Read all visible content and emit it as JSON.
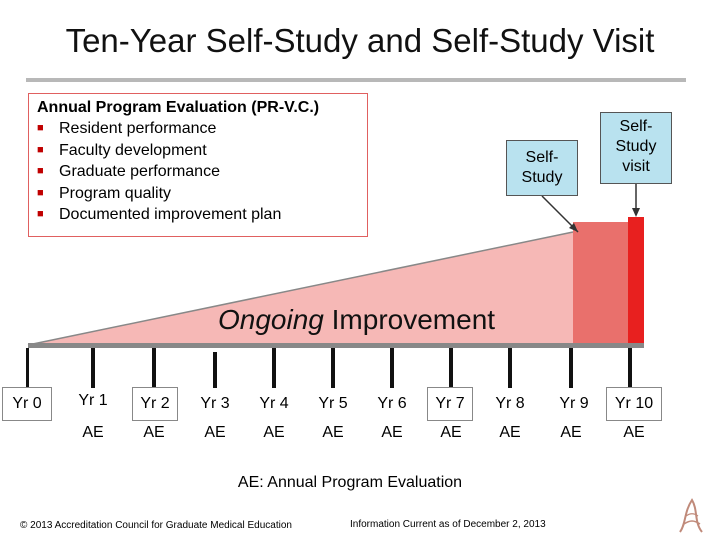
{
  "title": "Ten-Year Self-Study and Self-Study Visit",
  "annual_box": {
    "heading": "Annual Program Evaluation (PR-V.C.)",
    "items": [
      "Resident performance",
      "Faculty development",
      "Graduate performance",
      "Program quality",
      "Documented improvement plan"
    ]
  },
  "self_study": {
    "line1": "Self-",
    "line2": "Study"
  },
  "self_study_visit": {
    "line1": "Self-",
    "line2": "Study",
    "line3": "visit"
  },
  "ongoing": {
    "italic": "Ongoing",
    "rest": " Improvement"
  },
  "years": [
    "Yr 0",
    "Yr 1",
    "Yr 2",
    "Yr 3",
    "Yr 4",
    "Yr 5",
    "Yr 6",
    "Yr 7",
    "Yr 8",
    "Yr 9",
    "Yr 10"
  ],
  "ae_label": "AE",
  "legend": "AE: Annual Program Evaluation",
  "footer": {
    "copyright": "© 2013 Accreditation Council for Graduate Medical Education",
    "info": "Information Current as of December 2, 2013"
  },
  "colors": {
    "wedge": "#f6b8b6",
    "self_study_band": "#e9706c",
    "visit_band": "#e8201f",
    "callout": "#b9e2ef",
    "box_border": "#e06060"
  }
}
